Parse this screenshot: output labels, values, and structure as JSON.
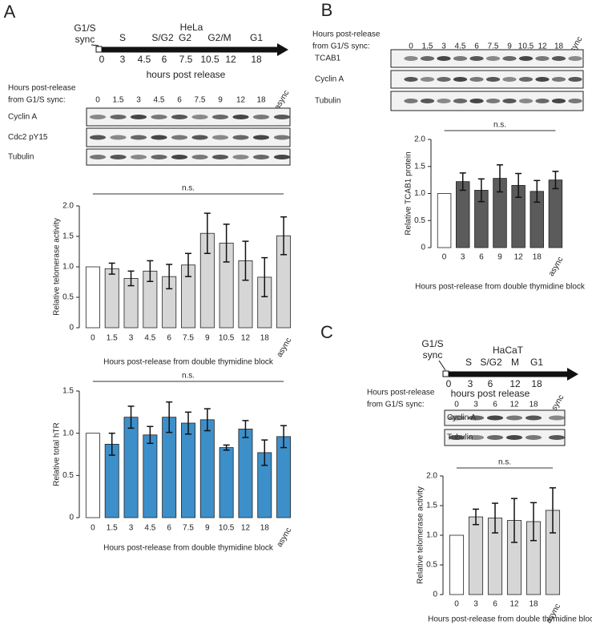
{
  "panels": [
    "A",
    "B",
    "C"
  ],
  "timelines": [
    {
      "cell_line": "HeLa",
      "sync": [
        "G1/S",
        "sync"
      ],
      "phases": [
        "S",
        "S/G2",
        "G2",
        "G2/M",
        "G1"
      ],
      "hours": [
        "0",
        "3",
        "4.5",
        "6",
        "7.5",
        "10.5",
        "12",
        "18"
      ],
      "axis_label": "hours post release"
    },
    {
      "cell_line": "HaCaT",
      "sync": [
        "G1/S",
        "sync"
      ],
      "phases": [
        "S",
        "S/G2",
        "M",
        "G1"
      ],
      "hours": [
        "0",
        "3",
        "6",
        "12",
        "18"
      ],
      "axis_label": "hours post release"
    }
  ],
  "blots": [
    {
      "header": [
        "Hours post-release",
        "from G1/S sync:"
      ],
      "lanes": [
        "0",
        "1.5",
        "3",
        "4.5",
        "6",
        "7.5",
        "9",
        "12",
        "18",
        "async"
      ],
      "rows": [
        "Cyclin A",
        "Cdc2 pY15",
        "Tubulin"
      ]
    },
    {
      "header": [
        "Hours post-release",
        "from G1/S sync:"
      ],
      "lanes": [
        "0",
        "1.5",
        "3",
        "4.5",
        "6",
        "7.5",
        "9",
        "10.5",
        "12",
        "18",
        "async"
      ],
      "rows": [
        "TCAB1",
        "Cyclin A",
        "Tubulin"
      ]
    },
    {
      "header": [
        "Hours post-release",
        "from G1/S sync:"
      ],
      "lanes": [
        "0",
        "3",
        "6",
        "12",
        "18",
        "async"
      ],
      "rows": [
        "Cyclin A",
        "Tubulin"
      ]
    }
  ],
  "chart_data": [
    {
      "type": "bar",
      "y_label": "Relative telomerase activity",
      "x_label": "Hours post-release from double thymidine block",
      "annotation": "n.s.",
      "categories": [
        "0",
        "1.5",
        "3",
        "4.5",
        "6",
        "7.5",
        "9",
        "10.5",
        "12",
        "18",
        "async"
      ],
      "values": [
        1.0,
        0.97,
        0.81,
        0.93,
        0.84,
        1.03,
        1.55,
        1.39,
        1.1,
        0.83,
        1.51
      ],
      "errors": [
        null,
        0.09,
        0.12,
        0.17,
        0.2,
        0.19,
        0.33,
        0.31,
        0.32,
        0.32,
        0.31
      ],
      "colors": [
        "#ffffff",
        "#d6d6d6",
        "#d6d6d6",
        "#d6d6d6",
        "#d6d6d6",
        "#d6d6d6",
        "#d6d6d6",
        "#d6d6d6",
        "#d6d6d6",
        "#d6d6d6",
        "#d6d6d6"
      ],
      "ylim": [
        0,
        2
      ],
      "yticks": [
        0,
        0.5,
        {
          "value": 1,
          "label": "1.0"
        },
        1.5,
        {
          "value": 2,
          "label": "2.0"
        }
      ]
    },
    {
      "type": "bar",
      "y_label": "Relative total hTR",
      "x_label": "Hours post-release from double thymidine block",
      "annotation": "n.s.",
      "categories": [
        "0",
        "1.5",
        "3",
        "4.5",
        "6",
        "7.5",
        "9",
        "10.5",
        "12",
        "18",
        "async"
      ],
      "values": [
        1.0,
        0.87,
        1.19,
        0.98,
        1.19,
        1.12,
        1.16,
        0.83,
        1.05,
        0.77,
        0.96
      ],
      "errors": [
        null,
        0.13,
        0.13,
        0.1,
        0.18,
        0.13,
        0.13,
        0.03,
        0.1,
        0.15,
        0.13
      ],
      "colors": [
        "#ffffff",
        "#3d8fc9",
        "#3d8fc9",
        "#3d8fc9",
        "#3d8fc9",
        "#3d8fc9",
        "#3d8fc9",
        "#3d8fc9",
        "#3d8fc9",
        "#3d8fc9",
        "#3d8fc9"
      ],
      "ylim": [
        0,
        1.5
      ],
      "yticks": [
        0,
        0.5,
        {
          "value": 1,
          "label": "1.0"
        },
        1.5
      ]
    },
    {
      "type": "bar",
      "y_label": "Relative TCAB1 protein",
      "x_label": "Hours post-release from double thymidine block",
      "annotation": "n.s.",
      "categories": [
        "0",
        "3",
        "6",
        "9",
        "12",
        "18",
        "async"
      ],
      "values": [
        1.0,
        1.22,
        1.06,
        1.28,
        1.15,
        1.04,
        1.25
      ],
      "errors": [
        null,
        0.16,
        0.21,
        0.25,
        0.22,
        0.2,
        0.16
      ],
      "colors": [
        "#ffffff",
        "#5b5b5b",
        "#5b5b5b",
        "#5b5b5b",
        "#5b5b5b",
        "#5b5b5b",
        "#5b5b5b"
      ],
      "ylim": [
        0,
        2
      ],
      "yticks": [
        0,
        0.5,
        {
          "value": 1,
          "label": "1.0"
        },
        1.5,
        {
          "value": 2,
          "label": "2.0"
        }
      ]
    },
    {
      "type": "bar",
      "y_label": "Relative telomerase activity",
      "x_label": "Hours post-release from double thymidine block",
      "annotation": "n.s.",
      "categories": [
        "0",
        "3",
        "6",
        "12",
        "18",
        "async"
      ],
      "values": [
        1.0,
        1.31,
        1.29,
        1.25,
        1.23,
        1.42
      ],
      "errors": [
        null,
        0.13,
        0.25,
        0.37,
        0.32,
        0.38
      ],
      "colors": [
        "#ffffff",
        "#d6d6d6",
        "#d6d6d6",
        "#d6d6d6",
        "#d6d6d6",
        "#d6d6d6"
      ],
      "ylim": [
        0,
        2
      ],
      "yticks": [
        0,
        0.5,
        {
          "value": 1,
          "label": "1.0"
        },
        1.5,
        {
          "value": 2,
          "label": "2.0"
        }
      ]
    }
  ]
}
